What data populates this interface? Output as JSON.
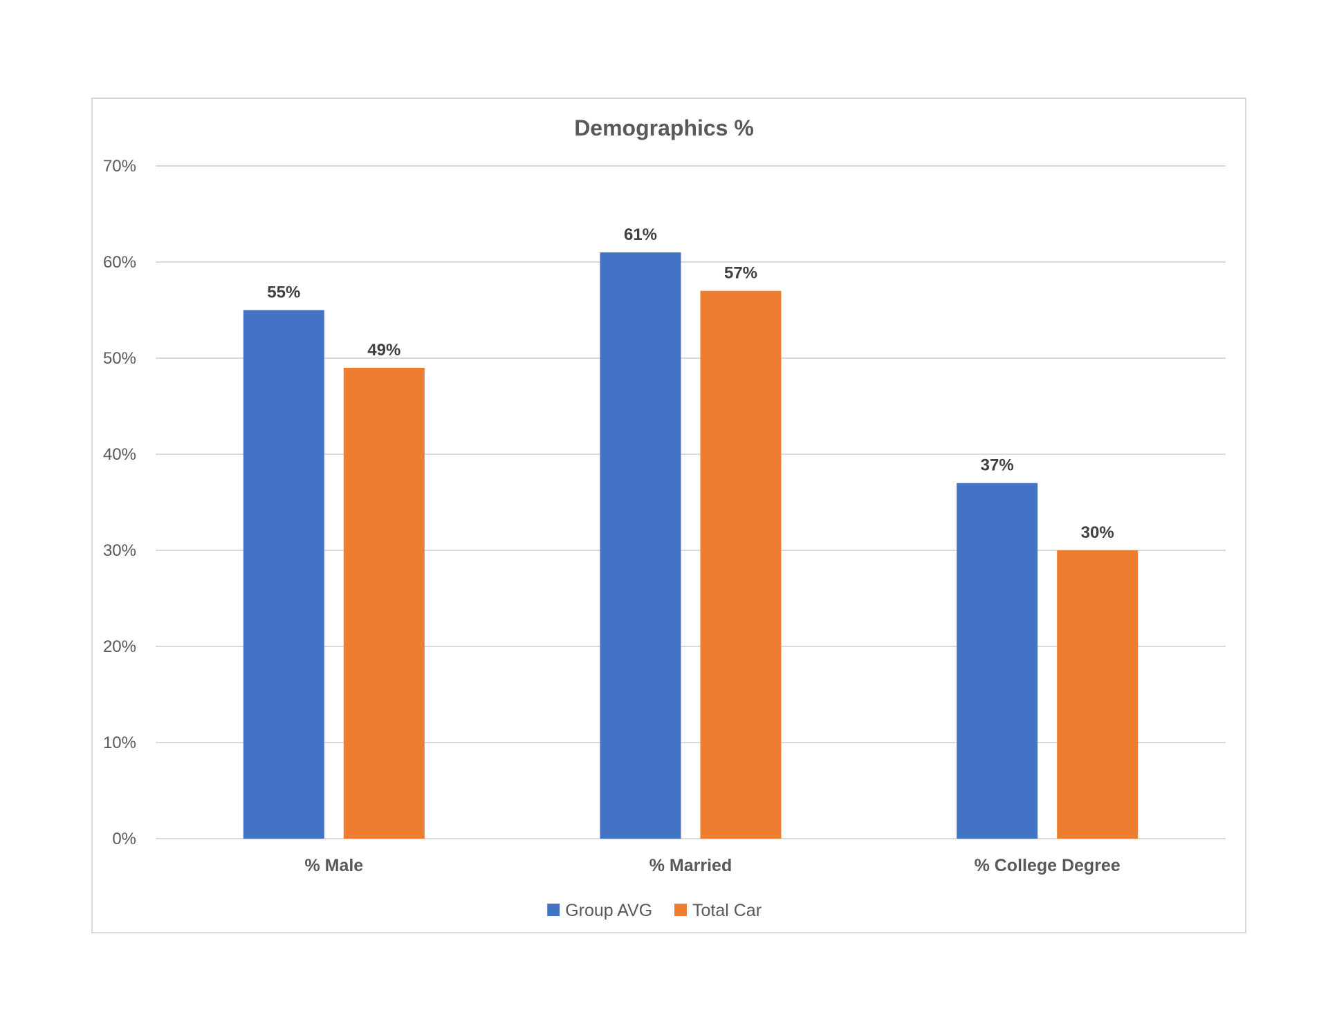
{
  "chart_data": {
    "type": "bar",
    "title": "Demographics %",
    "categories": [
      "% Male",
      "% Married",
      "% College Degree"
    ],
    "series": [
      {
        "name": "Group AVG",
        "color": "#4472c4",
        "values": [
          55,
          61,
          37
        ],
        "labels": [
          "55%",
          "61%",
          "37%"
        ]
      },
      {
        "name": "Total Car",
        "color": "#ed7d31",
        "values": [
          49,
          57,
          30
        ],
        "labels": [
          "49%",
          "57%",
          "30%"
        ]
      }
    ],
    "ylim": [
      0,
      70
    ],
    "yticks": [
      0,
      10,
      20,
      30,
      40,
      50,
      60,
      70
    ],
    "ytick_labels": [
      "0%",
      "10%",
      "20%",
      "30%",
      "40%",
      "50%",
      "60%",
      "70%"
    ],
    "grid": true,
    "gridline_color": "#d9d9d9",
    "legend_position": "bottom"
  }
}
